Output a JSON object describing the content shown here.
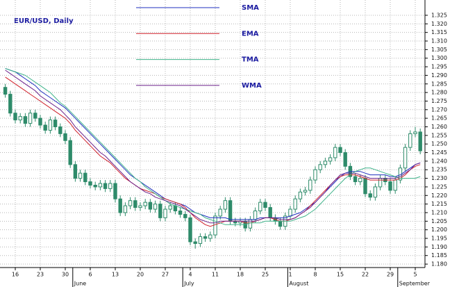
{
  "chart_data": {
    "type": "candlestick",
    "title": "EUR/USD, Daily",
    "categories": [
      null,
      null,
      "16",
      null,
      null,
      null,
      null,
      "23",
      null,
      null,
      null,
      null,
      "30",
      null,
      null,
      null,
      null,
      "6",
      null,
      null,
      null,
      null,
      "13",
      null,
      null,
      null,
      null,
      "20",
      null,
      null,
      null,
      null,
      "27",
      null,
      null,
      null,
      null,
      "4",
      null,
      null,
      null,
      null,
      "11",
      null,
      null,
      null,
      null,
      "18",
      null,
      null,
      null,
      null,
      "25",
      null,
      null,
      null,
      null,
      "1",
      null,
      null,
      null,
      null,
      "8",
      null,
      null,
      null,
      null,
      "15",
      null,
      null,
      null,
      null,
      "22",
      null,
      null,
      null,
      null,
      "29",
      null,
      null,
      null,
      null,
      "5",
      null
    ],
    "month_labels": [
      null,
      null,
      null,
      null,
      null,
      null,
      null,
      null,
      null,
      null,
      null,
      null,
      null,
      null,
      "June",
      null,
      null,
      null,
      null,
      null,
      null,
      null,
      null,
      null,
      null,
      null,
      null,
      null,
      null,
      null,
      null,
      null,
      null,
      null,
      null,
      null,
      "July",
      null,
      null,
      null,
      null,
      null,
      null,
      null,
      null,
      null,
      null,
      null,
      null,
      null,
      null,
      null,
      null,
      null,
      null,
      null,
      null,
      "August",
      null,
      null,
      null,
      null,
      null,
      null,
      null,
      null,
      null,
      null,
      null,
      null,
      null,
      null,
      null,
      null,
      null,
      null,
      null,
      null,
      null,
      "September",
      null,
      null,
      null
    ],
    "open": [
      1.283,
      1.279,
      1.268,
      1.264,
      1.266,
      1.262,
      1.268,
      1.265,
      1.261,
      1.258,
      1.264,
      1.26,
      1.256,
      1.252,
      1.238,
      1.23,
      1.233,
      1.228,
      1.226,
      1.225,
      1.227,
      1.224,
      1.227,
      1.218,
      1.21,
      1.214,
      1.217,
      1.213,
      1.214,
      1.216,
      1.212,
      1.215,
      1.207,
      1.212,
      1.214,
      1.211,
      1.209,
      1.207,
      1.193,
      1.192,
      1.196,
      1.195,
      1.197,
      1.208,
      1.212,
      1.217,
      1.205,
      1.204,
      1.205,
      1.201,
      1.206,
      1.211,
      1.216,
      1.213,
      1.207,
      1.205,
      1.202,
      1.208,
      1.212,
      1.218,
      1.222,
      1.223,
      1.229,
      1.235,
      1.238,
      1.24,
      1.242,
      1.248,
      1.245,
      1.237,
      1.231,
      1.228,
      1.23,
      1.221,
      1.219,
      1.225,
      1.23,
      1.228,
      1.223,
      1.229,
      1.236,
      1.248,
      1.256,
      1.257
    ],
    "high": [
      1.285,
      1.281,
      1.27,
      1.268,
      1.268,
      1.27,
      1.27,
      1.267,
      1.263,
      1.266,
      1.266,
      1.262,
      1.258,
      1.254,
      1.24,
      1.235,
      1.235,
      1.23,
      1.228,
      1.229,
      1.229,
      1.229,
      1.229,
      1.22,
      1.216,
      1.219,
      1.219,
      1.216,
      1.218,
      1.218,
      1.217,
      1.217,
      1.214,
      1.216,
      1.216,
      1.213,
      1.211,
      1.209,
      1.195,
      1.198,
      1.198,
      1.199,
      1.21,
      1.214,
      1.219,
      1.219,
      1.207,
      1.207,
      1.207,
      1.208,
      1.213,
      1.218,
      1.218,
      1.215,
      1.209,
      1.207,
      1.21,
      1.214,
      1.22,
      1.224,
      1.225,
      1.231,
      1.237,
      1.24,
      1.242,
      1.244,
      1.25,
      1.25,
      1.247,
      1.239,
      1.233,
      1.232,
      1.232,
      1.223,
      1.227,
      1.232,
      1.232,
      1.23,
      1.231,
      1.238,
      1.25,
      1.258,
      1.26,
      1.259
    ],
    "low": [
      1.277,
      1.266,
      1.262,
      1.262,
      1.26,
      1.26,
      1.263,
      1.259,
      1.256,
      1.256,
      1.258,
      1.254,
      1.25,
      1.236,
      1.228,
      1.228,
      1.226,
      1.224,
      1.223,
      1.223,
      1.222,
      1.222,
      1.216,
      1.208,
      1.208,
      1.212,
      1.211,
      1.211,
      1.212,
      1.21,
      1.21,
      1.205,
      1.205,
      1.21,
      1.209,
      1.207,
      1.205,
      1.191,
      1.189,
      1.19,
      1.193,
      1.193,
      1.195,
      1.206,
      1.21,
      1.203,
      1.202,
      1.202,
      1.199,
      1.199,
      1.204,
      1.209,
      1.211,
      1.205,
      1.203,
      1.2,
      1.2,
      1.206,
      1.21,
      1.216,
      1.22,
      1.221,
      1.227,
      1.233,
      1.236,
      1.238,
      1.24,
      1.243,
      1.235,
      1.229,
      1.226,
      1.226,
      1.219,
      1.217,
      1.217,
      1.223,
      1.226,
      1.221,
      1.221,
      1.227,
      1.234,
      1.246,
      1.254,
      1.244
    ],
    "close": [
      1.279,
      1.268,
      1.264,
      1.266,
      1.262,
      1.268,
      1.265,
      1.261,
      1.258,
      1.264,
      1.26,
      1.256,
      1.252,
      1.238,
      1.23,
      1.233,
      1.228,
      1.226,
      1.225,
      1.227,
      1.224,
      1.227,
      1.218,
      1.21,
      1.214,
      1.217,
      1.213,
      1.214,
      1.216,
      1.212,
      1.215,
      1.207,
      1.212,
      1.214,
      1.211,
      1.209,
      1.207,
      1.193,
      1.192,
      1.196,
      1.195,
      1.197,
      1.208,
      1.212,
      1.217,
      1.205,
      1.204,
      1.205,
      1.201,
      1.206,
      1.211,
      1.216,
      1.213,
      1.207,
      1.205,
      1.202,
      1.208,
      1.212,
      1.218,
      1.222,
      1.223,
      1.229,
      1.235,
      1.238,
      1.24,
      1.242,
      1.248,
      1.245,
      1.237,
      1.231,
      1.228,
      1.23,
      1.221,
      1.219,
      1.225,
      1.23,
      1.228,
      1.223,
      1.229,
      1.236,
      1.248,
      1.256,
      1.257,
      1.246
    ],
    "candle_color": "#2e8b6a",
    "series": [
      {
        "name": "SMA",
        "color": "#1f2fbf",
        "values": [
          1.294,
          1.293,
          1.292,
          1.29,
          1.288,
          1.286,
          1.284,
          1.281,
          1.279,
          1.277,
          1.275,
          1.273,
          1.271,
          1.268,
          1.265,
          1.262,
          1.259,
          1.256,
          1.253,
          1.25,
          1.247,
          1.244,
          1.241,
          1.238,
          1.235,
          1.232,
          1.23,
          1.228,
          1.226,
          1.224,
          1.222,
          1.22,
          1.218,
          1.217,
          1.216,
          1.215,
          1.214,
          1.212,
          1.21,
          1.209,
          1.208,
          1.207,
          1.207,
          1.207,
          1.207,
          1.206,
          1.206,
          1.206,
          1.206,
          1.206,
          1.206,
          1.207,
          1.207,
          1.207,
          1.207,
          1.207,
          1.207,
          1.208,
          1.209,
          1.21,
          1.212,
          1.214,
          1.216,
          1.219,
          1.222,
          1.225,
          1.228,
          1.231,
          1.233,
          1.234,
          1.234,
          1.234,
          1.233,
          1.232,
          1.232,
          1.232,
          1.232,
          1.231,
          1.231,
          1.232,
          1.234,
          1.236,
          1.238,
          1.239
        ]
      },
      {
        "name": "EMA",
        "color": "#d0202a",
        "values": [
          1.289,
          1.287,
          1.285,
          1.283,
          1.281,
          1.279,
          1.277,
          1.275,
          1.273,
          1.271,
          1.269,
          1.267,
          1.265,
          1.262,
          1.258,
          1.255,
          1.252,
          1.249,
          1.246,
          1.243,
          1.241,
          1.239,
          1.236,
          1.233,
          1.23,
          1.228,
          1.226,
          1.224,
          1.223,
          1.222,
          1.221,
          1.219,
          1.218,
          1.217,
          1.216,
          1.215,
          1.213,
          1.21,
          1.207,
          1.205,
          1.203,
          1.202,
          1.203,
          1.204,
          1.205,
          1.205,
          1.205,
          1.205,
          1.204,
          1.204,
          1.205,
          1.206,
          1.207,
          1.207,
          1.206,
          1.205,
          1.205,
          1.206,
          1.207,
          1.209,
          1.211,
          1.214,
          1.217,
          1.22,
          1.223,
          1.226,
          1.229,
          1.231,
          1.232,
          1.232,
          1.232,
          1.231,
          1.23,
          1.229,
          1.229,
          1.229,
          1.229,
          1.229,
          1.229,
          1.23,
          1.232,
          1.235,
          1.237,
          1.238
        ]
      },
      {
        "name": "TMA",
        "color": "#3fb38a",
        "values": [
          1.294,
          1.293,
          1.292,
          1.291,
          1.29,
          1.288,
          1.286,
          1.284,
          1.282,
          1.28,
          1.277,
          1.274,
          1.272,
          1.269,
          1.266,
          1.263,
          1.26,
          1.257,
          1.254,
          1.251,
          1.248,
          1.245,
          1.242,
          1.239,
          1.236,
          1.233,
          1.23,
          1.228,
          1.225,
          1.223,
          1.221,
          1.219,
          1.217,
          1.215,
          1.214,
          1.213,
          1.212,
          1.211,
          1.21,
          1.209,
          1.207,
          1.206,
          1.205,
          1.204,
          1.203,
          1.203,
          1.203,
          1.203,
          1.203,
          1.204,
          1.204,
          1.204,
          1.205,
          1.205,
          1.205,
          1.205,
          1.205,
          1.205,
          1.206,
          1.207,
          1.208,
          1.21,
          1.212,
          1.215,
          1.218,
          1.221,
          1.224,
          1.227,
          1.23,
          1.232,
          1.234,
          1.235,
          1.236,
          1.236,
          1.235,
          1.234,
          1.233,
          1.232,
          1.231,
          1.23,
          1.23,
          1.23,
          1.23,
          1.231
        ]
      },
      {
        "name": "WMA",
        "color": "#6a1f8a",
        "values": [
          1.293,
          1.291,
          1.289,
          1.287,
          1.285,
          1.283,
          1.281,
          1.278,
          1.276,
          1.274,
          1.272,
          1.27,
          1.267,
          1.264,
          1.26,
          1.257,
          1.254,
          1.251,
          1.248,
          1.245,
          1.243,
          1.24,
          1.237,
          1.234,
          1.231,
          1.228,
          1.226,
          1.224,
          1.222,
          1.221,
          1.219,
          1.218,
          1.217,
          1.216,
          1.215,
          1.214,
          1.212,
          1.21,
          1.208,
          1.206,
          1.205,
          1.204,
          1.204,
          1.205,
          1.205,
          1.205,
          1.205,
          1.205,
          1.205,
          1.205,
          1.205,
          1.206,
          1.207,
          1.207,
          1.207,
          1.206,
          1.206,
          1.206,
          1.207,
          1.209,
          1.211,
          1.213,
          1.216,
          1.219,
          1.222,
          1.226,
          1.229,
          1.232,
          1.233,
          1.233,
          1.233,
          1.232,
          1.231,
          1.23,
          1.23,
          1.23,
          1.23,
          1.23,
          1.23,
          1.231,
          1.233,
          1.235,
          1.238,
          1.239
        ]
      }
    ],
    "ylim": [
      1.178,
      1.3339
    ],
    "yticks": [
      {
        "value": 1.18,
        "label": "1.180"
      },
      {
        "value": 1.185,
        "label": "1.185"
      },
      {
        "value": 1.19,
        "label": "1.190"
      },
      {
        "value": 1.195,
        "label": "1.195"
      },
      {
        "value": 1.2,
        "label": "1.200"
      },
      {
        "value": 1.205,
        "label": "1.205"
      },
      {
        "value": 1.21,
        "label": "1.210"
      },
      {
        "value": 1.215,
        "label": "1.215"
      },
      {
        "value": 1.22,
        "label": "1.220"
      },
      {
        "value": 1.225,
        "label": "1.225"
      },
      {
        "value": 1.23,
        "label": "1.230"
      },
      {
        "value": 1.235,
        "label": "1.235"
      },
      {
        "value": 1.24,
        "label": "1.240"
      },
      {
        "value": 1.245,
        "label": "1.245"
      },
      {
        "value": 1.25,
        "label": "1.250"
      },
      {
        "value": 1.255,
        "label": "1.255"
      },
      {
        "value": 1.26,
        "label": "1.260"
      },
      {
        "value": 1.265,
        "label": "1.265"
      },
      {
        "value": 1.27,
        "label": "1.270"
      },
      {
        "value": 1.275,
        "label": "1.275"
      },
      {
        "value": 1.28,
        "label": "1.280"
      },
      {
        "value": 1.285,
        "label": "1.285"
      },
      {
        "value": 1.29,
        "label": "1.290"
      },
      {
        "value": 1.295,
        "label": "1.295"
      },
      {
        "value": 1.3,
        "label": "1.300"
      },
      {
        "value": 1.305,
        "label": "1.305"
      },
      {
        "value": 1.31,
        "label": "1.310"
      },
      {
        "value": 1.315,
        "label": "1.315"
      },
      {
        "value": 1.32,
        "label": "1.320"
      },
      {
        "value": 1.325,
        "label": "1.325"
      }
    ],
    "grid": true
  }
}
